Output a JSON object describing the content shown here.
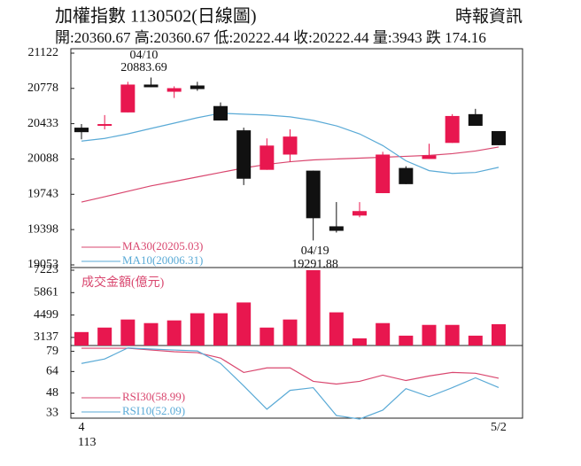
{
  "header": {
    "title": "加權指數 1130502(日線圖)",
    "source": "時報資訊",
    "summary": "開:20360.67 高:20360.67 低:20222.44 收:20222.44 量:3943 跌 174.16"
  },
  "chart_data": [
    {
      "type": "candlestick",
      "categories": [
        "4",
        null,
        null,
        null,
        null,
        null,
        null,
        null,
        null,
        null,
        null,
        null,
        null,
        null,
        null,
        null,
        null,
        null,
        "5/2"
      ],
      "year_label": "113",
      "open": [
        20394,
        20412,
        20543,
        20815,
        20745,
        20806,
        20605,
        20368,
        19982,
        20131,
        19974,
        19430,
        19535,
        19754,
        20000,
        20088,
        20245,
        20526,
        20360.67
      ],
      "high": [
        20429,
        20517,
        20842,
        20883.69,
        20798,
        20842,
        20640,
        20394,
        20289,
        20377,
        19974,
        19667,
        19667,
        20158,
        20017,
        20237,
        20526,
        20578,
        20360.67
      ],
      "low": [
        20280,
        20377,
        20543,
        20789,
        20684,
        20754,
        20464,
        19833,
        19982,
        20061,
        19291.88,
        19369,
        19518,
        19754,
        19842,
        20088,
        20245,
        20412,
        20222.44
      ],
      "close": [
        20350,
        20429,
        20815,
        20789,
        20780,
        20771,
        20464,
        19895,
        20219,
        20307,
        19509,
        19386,
        19579,
        20131,
        19842,
        20123,
        20508,
        20412,
        20222.44
      ],
      "up_color": "#e8174f",
      "down_color": "#111111",
      "annotations": [
        {
          "date": "04/10",
          "value": 20883.69
        },
        {
          "date": "04/19",
          "value": 19291.88
        }
      ],
      "series": [
        {
          "name": "MA30(20205.03)",
          "color": "#d9476f",
          "values": [
            19667,
            19719,
            19772,
            19825,
            19868,
            19912,
            19956,
            20000,
            20035,
            20061,
            20079,
            20088,
            20096,
            20105,
            20114,
            20123,
            20140,
            20166,
            20205.03
          ]
        },
        {
          "name": "MA10(20006.31)",
          "color": "#5aaad6",
          "values": [
            20263,
            20289,
            20333,
            20386,
            20438,
            20491,
            20535,
            20526,
            20517,
            20500,
            20465,
            20412,
            20333,
            20219,
            20070,
            19974,
            19947,
            19956,
            20006.31
          ]
        }
      ],
      "ylim": [
        19053,
        21122
      ],
      "yticks": [
        19053,
        19398,
        19743,
        20088,
        20433,
        20778,
        21122
      ]
    },
    {
      "type": "bar",
      "title": "成交金額(億元)",
      "color": "#e8174f",
      "values": [
        3463,
        3736,
        4226,
        4008,
        4172,
        4608,
        4608,
        5262,
        3736,
        4226,
        7223,
        4662,
        3082,
        4008,
        3245,
        3899,
        3899,
        3245,
        3943
      ],
      "ylim": [
        2700,
        7223
      ],
      "yticks": [
        3137,
        4499,
        5861,
        7223
      ]
    },
    {
      "type": "line",
      "series": [
        {
          "name": "RSI30(58.99)",
          "color": "#d9476f",
          "values": [
            81.3,
            81.3,
            81.3,
            80,
            78.7,
            78,
            74,
            63.3,
            66.7,
            66.7,
            56.7,
            54.7,
            56.7,
            61.3,
            57.3,
            60.7,
            63.3,
            62.7,
            58.99
          ]
        },
        {
          "name": "RSI10(52.09)",
          "color": "#5aaad6",
          "values": [
            70,
            73.3,
            81.5,
            80.7,
            80,
            79.3,
            70,
            53.3,
            36,
            50,
            52,
            31.3,
            28.7,
            35.3,
            51.3,
            45.3,
            52,
            59.3,
            52.09
          ]
        }
      ],
      "ylim": [
        30,
        82
      ],
      "yticks": [
        33,
        48,
        64,
        79
      ]
    }
  ]
}
